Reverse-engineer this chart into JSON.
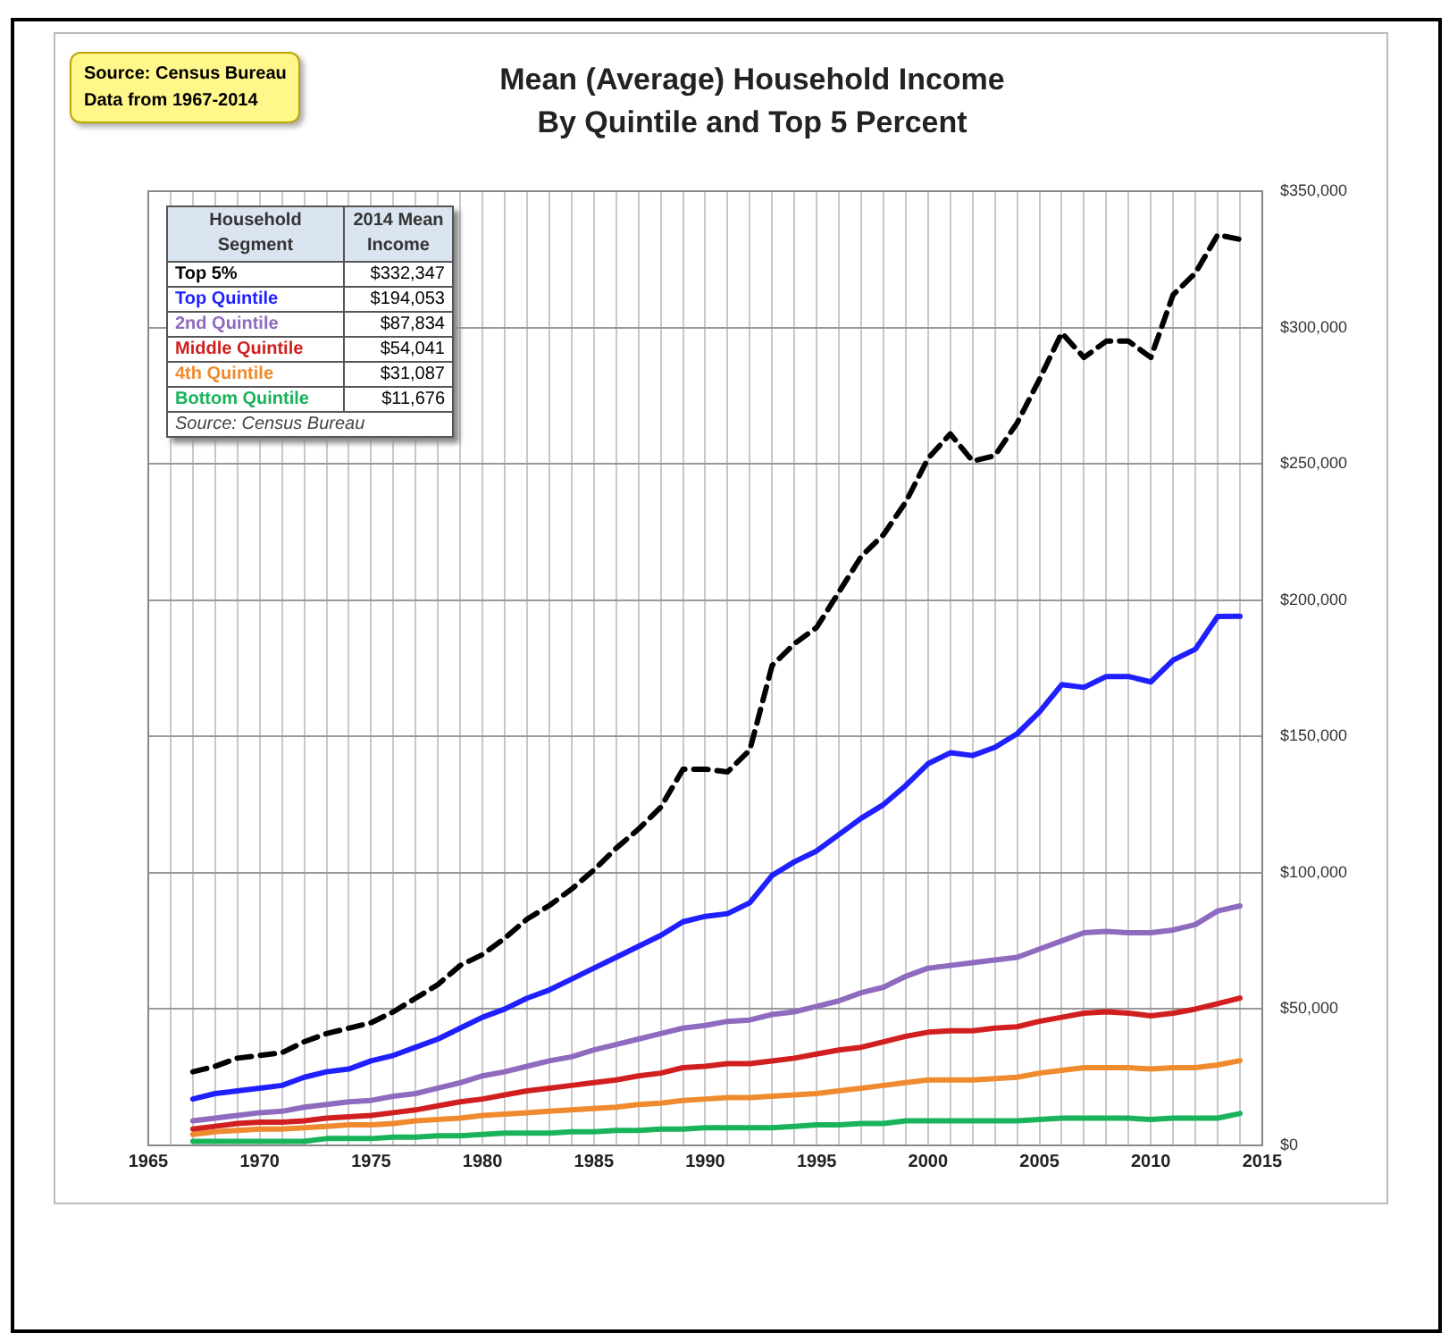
{
  "chart_data": {
    "type": "line",
    "title": "Mean (Average) Household Income",
    "subtitle": "By Quintile and Top 5 Percent",
    "annotations": [
      "Source: Census Bureau",
      "Data from 1967-2014",
      "2014 Mean Income",
      "$332,347",
      "$194,053",
      "$87,834",
      "$54,041",
      "$31,087",
      "$11,676",
      "Source: Census Bureau"
    ],
    "legend": "top left",
    "legend_title": "Household Segment",
    "grid": true,
    "marker": "none",
    "x": [
      1967,
      1968,
      1969,
      1970,
      1971,
      1972,
      1973,
      1974,
      1975,
      1976,
      1977,
      1978,
      1979,
      1980,
      1981,
      1982,
      1983,
      1984,
      1985,
      1986,
      1987,
      1988,
      1989,
      1990,
      1991,
      1992,
      1993,
      1994,
      1995,
      1996,
      1997,
      1998,
      1999,
      2000,
      2001,
      2002,
      2003,
      2004,
      2005,
      2006,
      2007,
      2008,
      2009,
      2010,
      2011,
      2012,
      2013,
      2014
    ],
    "series": [
      {
        "name": "Top 5%",
        "color": "#000000",
        "line_style": "dashed",
        "values": [
          27000,
          29000,
          32000,
          33000,
          34000,
          38000,
          41000,
          43000,
          45000,
          49000,
          54000,
          59000,
          66000,
          70000,
          76000,
          83000,
          88000,
          94000,
          101000,
          109000,
          116000,
          124000,
          138000,
          138000,
          137000,
          145000,
          176000,
          184000,
          190000,
          203000,
          216000,
          224000,
          236000,
          252000,
          261000,
          251000,
          253000,
          265000,
          281000,
          298000,
          289000,
          295000,
          295000,
          289000,
          312000,
          320000,
          334000,
          332347
        ]
      },
      {
        "name": "Top Quintile",
        "color": "#1f1fff",
        "line_style": "solid",
        "values": [
          17000,
          19000,
          20000,
          21000,
          22000,
          25000,
          27000,
          28000,
          31000,
          33000,
          36000,
          39000,
          43000,
          47000,
          50000,
          54000,
          57000,
          61000,
          65000,
          69000,
          73000,
          77000,
          82000,
          84000,
          85000,
          89000,
          99000,
          104000,
          108000,
          114000,
          120000,
          125000,
          132000,
          140000,
          144000,
          143000,
          146000,
          151000,
          159000,
          169000,
          168000,
          172000,
          172000,
          170000,
          178000,
          182000,
          194000,
          194053
        ]
      },
      {
        "name": "2nd Quintile",
        "color": "#8e6bbf",
        "line_style": "solid",
        "values": [
          9000,
          10000,
          11000,
          12000,
          12500,
          14000,
          15000,
          16000,
          16500,
          18000,
          19000,
          21000,
          23000,
          25500,
          27000,
          29000,
          31000,
          32500,
          35000,
          37000,
          39000,
          41000,
          43000,
          44000,
          45500,
          46000,
          48000,
          49000,
          51000,
          53000,
          56000,
          58000,
          62000,
          65000,
          66000,
          67000,
          68000,
          69000,
          72000,
          75000,
          78000,
          78500,
          78000,
          78000,
          79000,
          81000,
          86000,
          87834
        ]
      },
      {
        "name": "Middle Quintile",
        "color": "#d11f1f",
        "line_style": "solid",
        "values": [
          6000,
          7000,
          8000,
          8500,
          8500,
          9000,
          10000,
          10500,
          11000,
          12000,
          13000,
          14500,
          16000,
          17000,
          18500,
          20000,
          21000,
          22000,
          23000,
          24000,
          25500,
          26500,
          28500,
          29000,
          30000,
          30000,
          31000,
          32000,
          33500,
          35000,
          36000,
          38000,
          40000,
          41500,
          42000,
          42000,
          43000,
          43500,
          45500,
          47000,
          48500,
          49000,
          48500,
          47500,
          48500,
          50000,
          52000,
          54041
        ]
      },
      {
        "name": "4th Quintile",
        "color": "#ef8a2e",
        "line_style": "solid",
        "values": [
          4000,
          5000,
          5500,
          6000,
          6000,
          6500,
          7000,
          7500,
          7500,
          8000,
          9000,
          9500,
          10000,
          11000,
          11500,
          12000,
          12500,
          13000,
          13500,
          14000,
          15000,
          15500,
          16500,
          17000,
          17500,
          17500,
          18000,
          18500,
          19000,
          20000,
          21000,
          22000,
          23000,
          24000,
          24000,
          24000,
          24500,
          25000,
          26500,
          27500,
          28500,
          28500,
          28500,
          28000,
          28500,
          28500,
          29500,
          31087
        ]
      },
      {
        "name": "Bottom Quintile",
        "color": "#19b35a",
        "line_style": "solid",
        "values": [
          1500,
          1500,
          1500,
          1500,
          1500,
          1500,
          2500,
          2500,
          2500,
          3000,
          3000,
          3500,
          3500,
          4000,
          4500,
          4500,
          4500,
          5000,
          5000,
          5500,
          5500,
          6000,
          6000,
          6500,
          6500,
          6500,
          6500,
          7000,
          7500,
          7500,
          8000,
          8000,
          9000,
          9000,
          9000,
          9000,
          9000,
          9000,
          9500,
          10000,
          10000,
          10000,
          10000,
          9500,
          10000,
          10000,
          10000,
          11676
        ]
      }
    ],
    "xlim": [
      1965,
      2015
    ],
    "xticks": [
      1965,
      {
        "value": 1966,
        "label": null
      },
      {
        "value": 1967,
        "label": null
      },
      {
        "value": 1968,
        "label": null
      },
      {
        "value": 1969,
        "label": null
      },
      1970,
      {
        "value": 1971,
        "label": null
      },
      {
        "value": 1972,
        "label": null
      },
      {
        "value": 1973,
        "label": null
      },
      {
        "value": 1974,
        "label": null
      },
      1975,
      {
        "value": 1976,
        "label": null
      },
      {
        "value": 1977,
        "label": null
      },
      {
        "value": 1978,
        "label": null
      },
      {
        "value": 1979,
        "label": null
      },
      1980,
      {
        "value": 1981,
        "label": null
      },
      {
        "value": 1982,
        "label": null
      },
      {
        "value": 1983,
        "label": null
      },
      {
        "value": 1984,
        "label": null
      },
      1985,
      {
        "value": 1986,
        "label": null
      },
      {
        "value": 1987,
        "label": null
      },
      {
        "value": 1988,
        "label": null
      },
      {
        "value": 1989,
        "label": null
      },
      1990,
      {
        "value": 1991,
        "label": null
      },
      {
        "value": 1992,
        "label": null
      },
      {
        "value": 1993,
        "label": null
      },
      {
        "value": 1994,
        "label": null
      },
      1995,
      {
        "value": 1996,
        "label": null
      },
      {
        "value": 1997,
        "label": null
      },
      {
        "value": 1998,
        "label": null
      },
      {
        "value": 1999,
        "label": null
      },
      2000,
      {
        "value": 2001,
        "label": null
      },
      {
        "value": 2002,
        "label": null
      },
      {
        "value": 2003,
        "label": null
      },
      {
        "value": 2004,
        "label": null
      },
      2005,
      {
        "value": 2006,
        "label": null
      },
      {
        "value": 2007,
        "label": null
      },
      {
        "value": 2008,
        "label": null
      },
      {
        "value": 2009,
        "label": null
      },
      2010,
      {
        "value": 2011,
        "label": null
      },
      {
        "value": 2012,
        "label": null
      },
      {
        "value": 2013,
        "label": null
      },
      {
        "value": 2014,
        "label": null
      },
      2015
    ],
    "ylim": [
      0,
      350000
    ],
    "yticks": [
      {
        "value": 0,
        "label": "$0"
      },
      {
        "value": 50000,
        "label": "$50,000"
      },
      {
        "value": 100000,
        "label": "$100,000"
      },
      {
        "value": 150000,
        "label": "$150,000"
      },
      {
        "value": 200000,
        "label": "$200,000"
      },
      {
        "value": 250000,
        "label": "$250,000"
      },
      {
        "value": 300000,
        "label": "$300,000"
      },
      {
        "value": 350000,
        "label": "$350,000"
      }
    ]
  }
}
